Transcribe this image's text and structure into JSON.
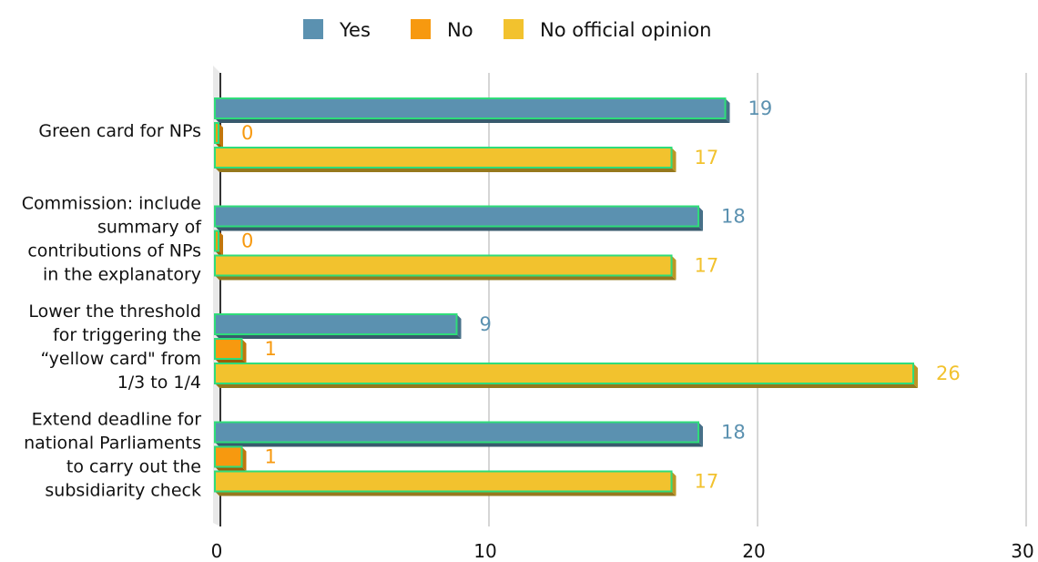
{
  "chart_data": {
    "type": "bar",
    "orientation": "horizontal",
    "categories": [
      [
        "Green card for NPs"
      ],
      [
        "Commission: include",
        "summary of",
        "contributions of NPs",
        "in the explanatory"
      ],
      [
        "Lower the threshold",
        "for triggering the",
        "“yellow card\" from",
        "1/3 to 1/4"
      ],
      [
        "Extend deadline for",
        "national Parliaments",
        "to carry out the",
        "subsidiarity check"
      ]
    ],
    "series": [
      {
        "name": "Yes",
        "color": "#5b91b0",
        "values": [
          19,
          18,
          9,
          18
        ]
      },
      {
        "name": "No",
        "color": "#f7990f",
        "values": [
          0,
          0,
          1,
          1
        ]
      },
      {
        "name": "No official opinion",
        "color": "#f2c22e",
        "values": [
          17,
          17,
          26,
          17
        ]
      }
    ],
    "x_ticks": [
      "0",
      "10",
      "20",
      "30"
    ],
    "xlim": [
      0,
      30
    ],
    "legend_position": "top",
    "grid": true,
    "style": "3d",
    "bar_outline_color": "#2fdc7a"
  }
}
